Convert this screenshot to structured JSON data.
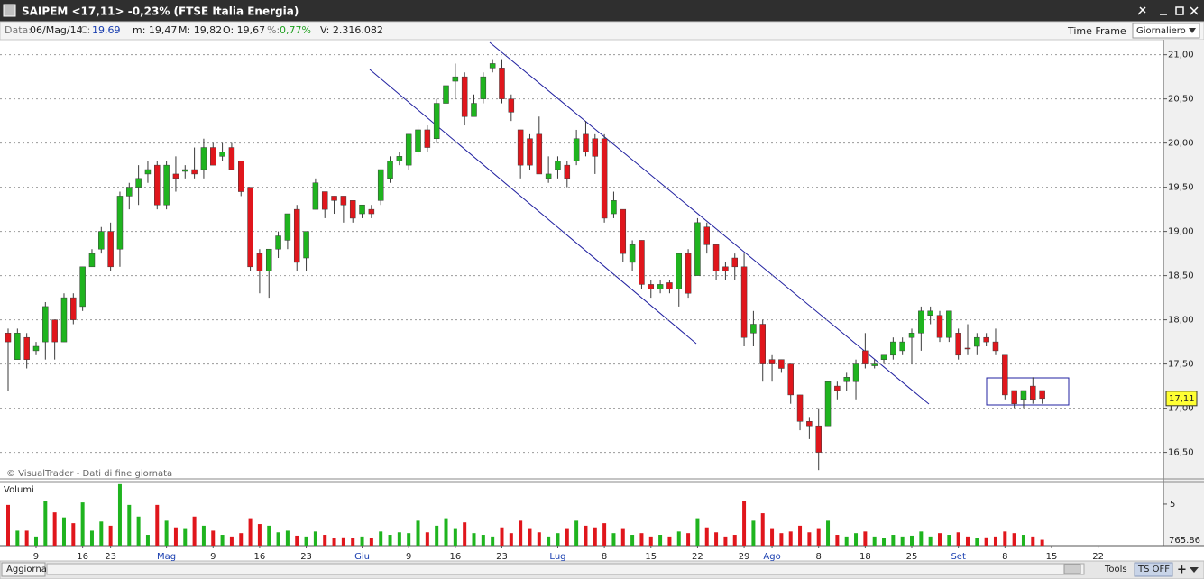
{
  "window": {
    "title": "SAIPEM <17,11> -0,23%  (FTSE Italia Energia)"
  },
  "info_bar": {
    "date_label": "Data:",
    "date": "06/Mag/14",
    "close_label": "C:",
    "close": "19,69",
    "min": "m: 19,47",
    "max": "M: 19,82",
    "open": "O: 19,67",
    "change_label": "%:",
    "change": "0,77%",
    "volume": "V: 2.316.082",
    "time_frame_label": "Time Frame",
    "time_frame": "Giornaliero"
  },
  "footer": {
    "refresh": "Aggiorna",
    "tools": "Tools",
    "ts": "TS OFF"
  },
  "chart_data": {
    "type": "candlestick",
    "credit": "© VisualTrader - Dati di fine giornata",
    "up_color": "#1fb41f",
    "down_color": "#e0161c",
    "grid": true,
    "ylim": [
      16.21,
      21.17
    ],
    "yticks": [
      {
        "value": 16.5,
        "label": "16,50"
      },
      {
        "value": 17,
        "label": "17,00"
      },
      {
        "value": 17.5,
        "label": "17,50"
      },
      {
        "value": 18,
        "label": "18,00"
      },
      {
        "value": 18.5,
        "label": "18,50"
      },
      {
        "value": 19,
        "label": "19,00"
      },
      {
        "value": 19.5,
        "label": "19,50"
      },
      {
        "value": 20,
        "label": "20,00"
      },
      {
        "value": 20.5,
        "label": "20,50"
      },
      {
        "value": 21,
        "label": "21,00"
      }
    ],
    "last_price": 17.11,
    "last_price_label": "17,11",
    "categories": [
      null,
      null,
      null,
      "9",
      null,
      null,
      null,
      null,
      "16",
      null,
      null,
      "23",
      null,
      null,
      null,
      null,
      null,
      "Mag",
      null,
      null,
      null,
      null,
      "9",
      null,
      null,
      null,
      null,
      "16",
      null,
      null,
      null,
      null,
      "23",
      null,
      null,
      null,
      null,
      null,
      "Giu",
      null,
      null,
      null,
      null,
      "9",
      null,
      null,
      null,
      null,
      "16",
      null,
      null,
      null,
      null,
      "23",
      null,
      null,
      null,
      null,
      null,
      "Lug",
      null,
      null,
      null,
      null,
      "8",
      null,
      null,
      null,
      null,
      "15",
      null,
      null,
      null,
      null,
      "22",
      null,
      null,
      null,
      null,
      "29",
      null,
      null,
      "Ago",
      null,
      null,
      null,
      null,
      "8",
      null,
      null,
      null,
      null,
      "18",
      null,
      null,
      null,
      null,
      "25",
      null,
      null,
      null,
      null,
      "Set",
      null,
      null,
      null,
      null,
      "8",
      null,
      null,
      null,
      null,
      "15",
      null,
      null,
      null,
      null,
      "22"
    ],
    "open": [
      17.85,
      17.55,
      17.8,
      17.65,
      17.75,
      18.0,
      17.75,
      18.25,
      18.15,
      18.6,
      18.8,
      19.0,
      18.8,
      19.4,
      19.5,
      19.65,
      19.75,
      19.3,
      19.65,
      19.68,
      19.7,
      19.7,
      19.95,
      19.85,
      19.95,
      19.8,
      19.5,
      18.75,
      18.55,
      18.8,
      18.9,
      19.25,
      18.7,
      19.25,
      19.45,
      19.4,
      19.4,
      19.35,
      19.2,
      19.25,
      19.35,
      19.6,
      19.8,
      19.75,
      19.9,
      20.15,
      20.05,
      20.45,
      20.7,
      20.75,
      20.3,
      20.5,
      20.85,
      20.85,
      20.5,
      20.15,
      20.05,
      20.1,
      19.6,
      19.7,
      19.75,
      19.8,
      20.1,
      20.05,
      20.05,
      19.2,
      19.25,
      18.65,
      18.9,
      18.4,
      18.35,
      18.42,
      18.35,
      18.75,
      18.5,
      19.05,
      18.85,
      18.6,
      18.7,
      18.6,
      17.85,
      17.95,
      17.55,
      17.55,
      17.5,
      17.15,
      16.85,
      16.8,
      16.8,
      17.25,
      17.3,
      17.3,
      17.65,
      17.48,
      17.55,
      17.6,
      17.65,
      17.8,
      17.85,
      18.05,
      18.05,
      17.8,
      17.85,
      17.68,
      17.7,
      17.8,
      17.75,
      17.6,
      17.2,
      17.1,
      17.25,
      17.2,
      null,
      null,
      null,
      null,
      null,
      null
    ],
    "high": [
      17.9,
      17.9,
      17.85,
      17.75,
      18.2,
      18.0,
      18.3,
      18.3,
      18.6,
      18.8,
      19.05,
      19.1,
      19.45,
      19.55,
      19.75,
      19.8,
      19.8,
      19.8,
      19.85,
      19.75,
      19.95,
      20.05,
      20.0,
      20.0,
      20.0,
      19.8,
      19.5,
      18.8,
      18.8,
      19.0,
      19.2,
      19.3,
      19.0,
      19.6,
      19.45,
      19.4,
      19.4,
      19.35,
      19.3,
      19.3,
      19.7,
      19.85,
      19.9,
      20.1,
      20.2,
      20.2,
      20.5,
      21.0,
      20.9,
      20.8,
      20.55,
      20.8,
      20.95,
      20.95,
      20.55,
      20.15,
      20.1,
      20.3,
      19.85,
      19.85,
      19.8,
      20.15,
      20.25,
      20.1,
      20.1,
      19.45,
      19.25,
      18.9,
      18.9,
      18.45,
      18.45,
      18.45,
      18.75,
      18.8,
      19.15,
      19.1,
      18.85,
      18.65,
      18.75,
      18.75,
      18.1,
      18.0,
      17.6,
      17.55,
      17.5,
      17.15,
      16.9,
      17.0,
      17.3,
      17.3,
      17.4,
      17.55,
      17.85,
      17.55,
      17.6,
      17.8,
      17.8,
      17.9,
      18.15,
      18.15,
      18.1,
      18.1,
      17.9,
      17.95,
      17.85,
      17.85,
      17.9,
      17.6,
      17.2,
      17.2,
      17.35,
      17.2,
      null,
      null,
      null,
      null,
      null,
      null
    ],
    "low": [
      17.2,
      17.55,
      17.45,
      17.6,
      17.55,
      17.55,
      17.75,
      17.95,
      18.1,
      18.6,
      18.75,
      18.55,
      18.6,
      19.25,
      19.3,
      19.55,
      19.25,
      19.25,
      19.45,
      19.6,
      19.6,
      19.6,
      19.75,
      19.8,
      19.7,
      19.4,
      18.55,
      18.3,
      18.25,
      18.7,
      18.8,
      18.55,
      18.55,
      19.25,
      19.15,
      19.2,
      19.1,
      19.1,
      19.15,
      19.15,
      19.3,
      19.55,
      19.75,
      19.7,
      19.85,
      19.9,
      20.0,
      20.3,
      20.5,
      20.2,
      20.3,
      20.45,
      20.8,
      20.45,
      20.25,
      19.6,
      19.7,
      19.65,
      19.55,
      19.6,
      19.5,
      19.75,
      19.85,
      19.65,
      19.1,
      19.15,
      18.65,
      18.55,
      18.35,
      18.25,
      18.3,
      18.3,
      18.15,
      18.25,
      18.5,
      18.75,
      18.45,
      18.45,
      18.45,
      17.7,
      17.7,
      17.3,
      17.3,
      17.4,
      17.05,
      16.75,
      16.65,
      16.3,
      16.8,
      17.1,
      17.2,
      17.1,
      17.45,
      17.45,
      17.5,
      17.55,
      17.6,
      17.5,
      17.65,
      17.95,
      17.75,
      17.75,
      17.55,
      17.6,
      17.6,
      17.7,
      17.6,
      17.1,
      17.0,
      17.0,
      17.05,
      17.05,
      null,
      null,
      null,
      null,
      null,
      null
    ],
    "close": [
      17.75,
      17.85,
      17.55,
      17.7,
      18.15,
      17.75,
      18.25,
      18.0,
      18.6,
      18.75,
      19.0,
      18.6,
      19.4,
      19.5,
      19.6,
      19.7,
      19.3,
      19.75,
      19.6,
      19.7,
      19.65,
      19.95,
      19.75,
      19.9,
      19.7,
      19.45,
      18.6,
      18.55,
      18.8,
      18.95,
      19.2,
      18.65,
      19.0,
      19.55,
      19.25,
      19.35,
      19.3,
      19.15,
      19.3,
      19.2,
      19.7,
      19.8,
      19.85,
      20.1,
      20.15,
      19.95,
      20.45,
      20.65,
      20.75,
      20.3,
      20.45,
      20.75,
      20.9,
      20.5,
      20.35,
      19.75,
      19.75,
      19.65,
      19.65,
      19.8,
      19.6,
      20.05,
      19.9,
      19.85,
      19.15,
      19.35,
      18.75,
      18.85,
      18.4,
      18.35,
      18.4,
      18.35,
      18.75,
      18.3,
      19.1,
      18.85,
      18.55,
      18.55,
      18.6,
      17.8,
      17.95,
      17.5,
      17.5,
      17.45,
      17.15,
      16.85,
      16.8,
      16.5,
      17.3,
      17.2,
      17.35,
      17.5,
      17.5,
      17.5,
      17.6,
      17.75,
      17.75,
      17.85,
      18.1,
      18.1,
      17.8,
      18.1,
      17.6,
      17.67,
      17.8,
      17.75,
      17.65,
      17.15,
      17.05,
      17.2,
      17.1,
      17.11,
      null,
      null,
      null,
      null,
      null,
      null
    ],
    "volume_panel": {
      "title": "Volumi",
      "ylim": [
        0,
        7.6
      ],
      "yticks": [
        5
      ],
      "axis_label": "765.86",
      "values": [
        4.9,
        1.8,
        1.8,
        1.1,
        5.4,
        4.0,
        3.4,
        2.7,
        5.2,
        1.8,
        2.9,
        2.4,
        7.4,
        4.9,
        3.5,
        1.3,
        4.9,
        3.0,
        2.2,
        2.0,
        3.5,
        2.4,
        1.8,
        1.3,
        1.1,
        1.5,
        3.3,
        2.6,
        2.4,
        1.6,
        1.8,
        1.2,
        1.1,
        1.7,
        1.3,
        0.9,
        1.0,
        0.9,
        1.1,
        0.9,
        1.7,
        1.3,
        1.6,
        1.5,
        3.0,
        1.6,
        2.4,
        3.3,
        2.0,
        2.8,
        1.5,
        1.3,
        1.1,
        2.2,
        1.5,
        3.0,
        2.0,
        1.6,
        1.1,
        1.5,
        2.0,
        3.0,
        2.4,
        2.2,
        2.7,
        1.5,
        2.0,
        1.3,
        1.5,
        1.1,
        1.3,
        1.1,
        1.7,
        1.5,
        3.3,
        2.2,
        1.6,
        1.1,
        1.3,
        5.4,
        3.0,
        3.9,
        2.0,
        1.5,
        1.7,
        2.4,
        1.6,
        2.0,
        3.0,
        1.3,
        1.1,
        1.5,
        1.7,
        1.1,
        0.9,
        1.3,
        1.1,
        1.2,
        1.7,
        1.1,
        1.5,
        1.3,
        1.6,
        1.1,
        0.9,
        1.0,
        1.1,
        1.7,
        1.5,
        1.3,
        1.1,
        0.7,
        null,
        null,
        null,
        null,
        null,
        null
      ]
    }
  }
}
